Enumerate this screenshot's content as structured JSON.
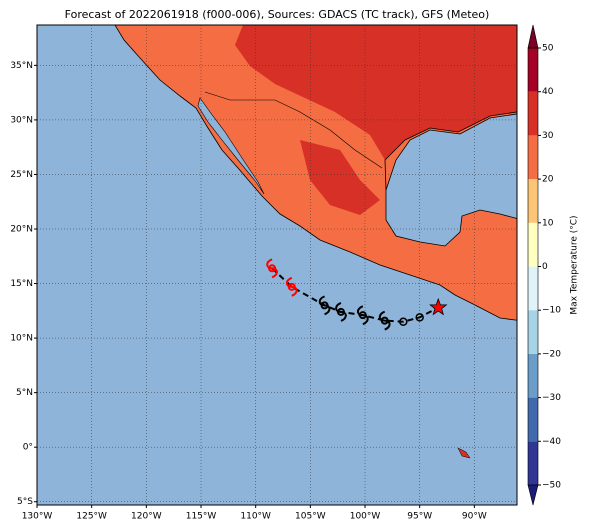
{
  "title": "Forecast of 2022061918 (f000-006), Sources: GDACS (TC track), GFS (Meteo)",
  "map": {
    "xlim": [
      -130,
      -86.1
    ],
    "ylim": [
      -5.3,
      38.7
    ],
    "xticks": [
      {
        "value": -130,
        "label": "130°W"
      },
      {
        "value": -125,
        "label": "125°W"
      },
      {
        "value": -120,
        "label": "120°W"
      },
      {
        "value": -115,
        "label": "115°W"
      },
      {
        "value": -110,
        "label": "110°W"
      },
      {
        "value": -105,
        "label": "105°W"
      },
      {
        "value": -100,
        "label": "100°W"
      },
      {
        "value": -95,
        "label": "95°W"
      },
      {
        "value": -90,
        "label": "90°W"
      }
    ],
    "yticks": [
      {
        "value": -5,
        "label": "5°S"
      },
      {
        "value": 0,
        "label": "0°"
      },
      {
        "value": 5,
        "label": "5°N"
      },
      {
        "value": 10,
        "label": "10°N"
      },
      {
        "value": 15,
        "label": "15°N"
      },
      {
        "value": 20,
        "label": "20°N"
      },
      {
        "value": 25,
        "label": "25°N"
      },
      {
        "value": 30,
        "label": "30°N"
      },
      {
        "value": 35,
        "label": "35°N"
      }
    ],
    "grid": true,
    "track": {
      "lon": [
        -108.5,
        -106.7,
        -103.7,
        -102.2,
        -100.2,
        -98.2,
        -96.5,
        -95.0,
        -93.3
      ],
      "lat": [
        16.4,
        14.7,
        13.0,
        12.4,
        12.1,
        11.6,
        11.5,
        11.9,
        12.8
      ],
      "markers": [
        "storm",
        "storm",
        "storm",
        "storm",
        "storm",
        "storm",
        "low",
        "low",
        "star"
      ],
      "colors": [
        "#ff0000",
        "#ff0000",
        "#000000",
        "#000000",
        "#000000",
        "#000000",
        "#000000",
        "#000000",
        "#ff0000"
      ]
    }
  },
  "colorbar": {
    "label": "Max Temperature (°C)",
    "lim": [
      -50,
      50
    ],
    "levels": [
      -50,
      -40,
      -30,
      -20,
      -10,
      0,
      10,
      20,
      30,
      40,
      50
    ],
    "colors": [
      "#313695",
      "#4169ad",
      "#6a9dc8",
      "#a6d3e6",
      "#e0f3f8",
      "#ffffbf",
      "#fdc676",
      "#f46d43",
      "#d73027",
      "#a50026"
    ],
    "under": "#1c1c78",
    "over": "#7a0026",
    "ticks": [
      {
        "value": -50,
        "label": "−50"
      },
      {
        "value": -40,
        "label": "−40"
      },
      {
        "value": -30,
        "label": "−30"
      },
      {
        "value": -20,
        "label": "−20"
      },
      {
        "value": -10,
        "label": "−10"
      },
      0,
      10,
      20,
      30,
      40,
      50
    ]
  }
}
